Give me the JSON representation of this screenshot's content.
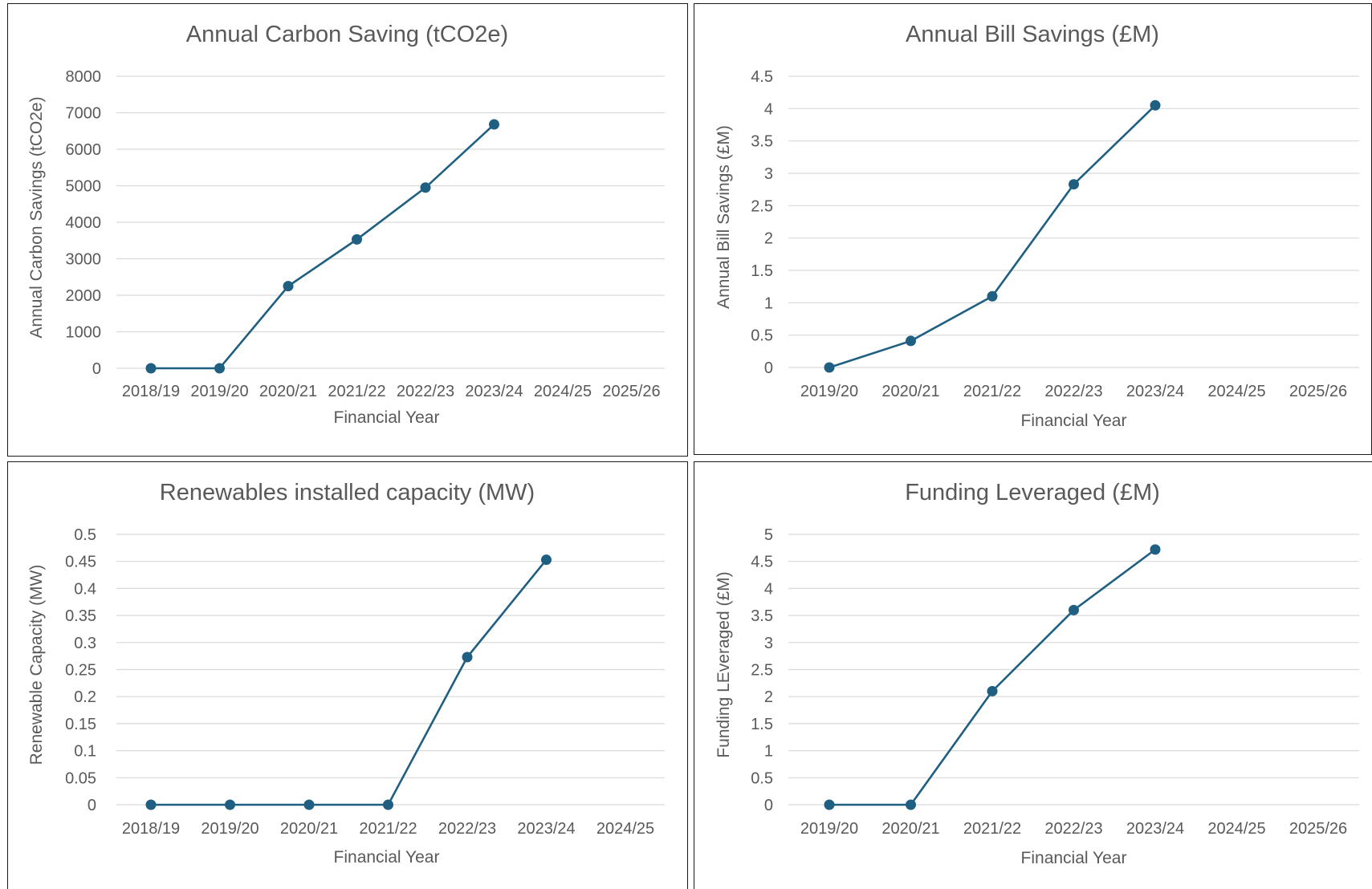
{
  "chart_data": [
    {
      "type": "line",
      "title": "Annual Carbon Saving (tCO2e)",
      "xlabel": "Financial Year",
      "ylabel": "Annual Carbon Savings (tCO2e)",
      "categories": [
        "2018/19",
        "2019/20",
        "2020/21",
        "2021/22",
        "2022/23",
        "2023/24",
        "2024/25",
        "2025/26"
      ],
      "values": [
        0,
        0,
        2250,
        3530,
        4950,
        6680,
        null,
        null
      ],
      "y_ticks": [
        "0",
        "1000",
        "2000",
        "3000",
        "4000",
        "5000",
        "6000",
        "7000",
        "8000"
      ],
      "ylim": [
        0,
        8000
      ],
      "grid": true,
      "color": "#1f5f82"
    },
    {
      "type": "line",
      "title": "Annual Bill Savings (£M)",
      "xlabel": "Financial Year",
      "ylabel": "Annual Bill Savings (£M)",
      "categories": [
        "2019/20",
        "2020/21",
        "2021/22",
        "2022/23",
        "2023/24",
        "2024/25",
        "2025/26"
      ],
      "values": [
        0,
        0.41,
        1.1,
        2.83,
        4.05,
        null,
        null
      ],
      "y_ticks": [
        "0",
        "0.5",
        "1",
        "1.5",
        "2",
        "2.5",
        "3",
        "3.5",
        "4",
        "4.5"
      ],
      "ylim": [
        0,
        4.5
      ],
      "grid": true,
      "color": "#1f5f82"
    },
    {
      "type": "line",
      "title": "Renewables installed capacity (MW)",
      "xlabel": "Financial Year",
      "ylabel": "Renewable Capacity (MW)",
      "categories": [
        "2018/19",
        "2019/20",
        "2020/21",
        "2021/22",
        "2022/23",
        "2023/24",
        "2024/25"
      ],
      "values": [
        0,
        0,
        0,
        0,
        0.273,
        0.453,
        null
      ],
      "y_ticks": [
        "0",
        "0.05",
        "0.1",
        "0.15",
        "0.2",
        "0.25",
        "0.3",
        "0.35",
        "0.4",
        "0.45",
        "0.5"
      ],
      "ylim": [
        0,
        0.5
      ],
      "grid": true,
      "color": "#1f5f82"
    },
    {
      "type": "line",
      "title": "Funding Leveraged (£M)",
      "xlabel": "Financial Year",
      "ylabel": "Funding LEveraged (£M)",
      "categories": [
        "2019/20",
        "2020/21",
        "2021/22",
        "2022/23",
        "2023/24",
        "2024/25",
        "2025/26"
      ],
      "values": [
        0,
        0,
        2.1,
        3.6,
        4.72,
        null,
        null
      ],
      "y_ticks": [
        "0",
        "0.5",
        "1",
        "1.5",
        "2",
        "2.5",
        "3",
        "3.5",
        "4",
        "4.5",
        "5"
      ],
      "ylim": [
        0,
        5
      ],
      "grid": true,
      "color": "#1f5f82"
    }
  ]
}
